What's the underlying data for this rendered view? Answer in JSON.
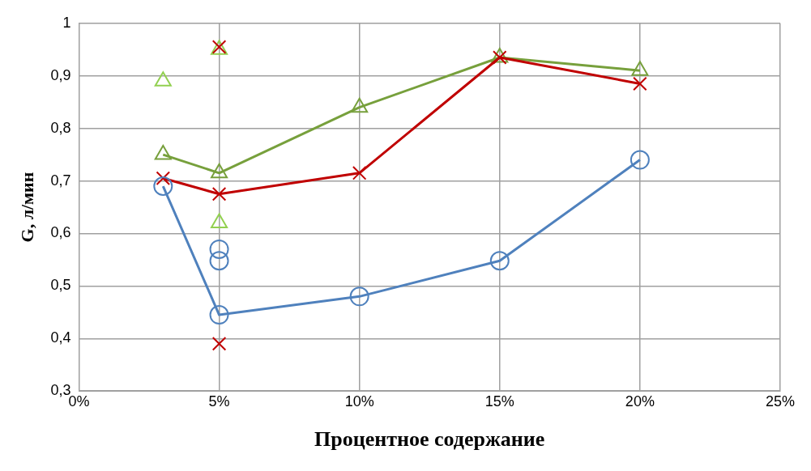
{
  "chart_data": {
    "type": "line",
    "xlabel": "Процентное содержание",
    "ylabel": "G, л/мин",
    "xlim": [
      0,
      25
    ],
    "xticks": [
      {
        "value": 0,
        "label": "0%"
      },
      {
        "value": 5,
        "label": "5%"
      },
      {
        "value": 10,
        "label": "10%"
      },
      {
        "value": 15,
        "label": "15%"
      },
      {
        "value": 20,
        "label": "20%"
      },
      {
        "value": 25,
        "label": "25%"
      }
    ],
    "ylim": [
      0.3,
      1
    ],
    "yticks": [
      {
        "value": 0.3,
        "label": "0,3"
      },
      {
        "value": 0.4,
        "label": "0,4"
      },
      {
        "value": 0.5,
        "label": "0,5"
      },
      {
        "value": 0.6,
        "label": "0,6"
      },
      {
        "value": 0.7,
        "label": "0,7"
      },
      {
        "value": 0.8,
        "label": "0,8"
      },
      {
        "value": 0.9,
        "label": "0,9"
      },
      {
        "value": 1,
        "label": "1"
      }
    ],
    "grid": true,
    "legend": false,
    "series": [
      {
        "type": "line",
        "marker": "circle",
        "color": "#4f81bd",
        "x": [
          3,
          5,
          10,
          15,
          20
        ],
        "values": [
          0.69,
          0.445,
          0.48,
          0.548,
          0.74
        ]
      },
      {
        "type": "line",
        "marker": "cross",
        "color": "#c00000",
        "x": [
          3,
          5,
          10,
          15,
          20
        ],
        "values": [
          0.705,
          0.675,
          0.715,
          0.935,
          0.885
        ]
      },
      {
        "type": "line",
        "marker": "triangle",
        "color": "#77a03c",
        "x": [
          3,
          5,
          10,
          15,
          20
        ],
        "values": [
          0.75,
          0.715,
          0.84,
          0.935,
          0.91
        ]
      },
      {
        "type": "scatter",
        "marker": "circle",
        "color": "#4f81bd",
        "x": [
          5,
          5
        ],
        "values": [
          0.57,
          0.548
        ]
      },
      {
        "type": "scatter",
        "marker": "cross",
        "color": "#c00000",
        "x": [
          5,
          5
        ],
        "values": [
          0.955,
          0.39
        ]
      },
      {
        "type": "scatter",
        "marker": "triangle",
        "color": "#92d050",
        "x": [
          3,
          5,
          5
        ],
        "values": [
          0.89,
          0.95,
          0.62
        ]
      }
    ]
  }
}
